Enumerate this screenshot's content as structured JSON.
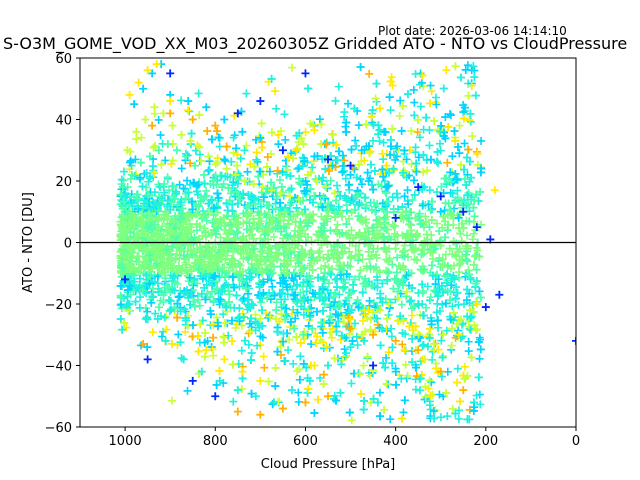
{
  "header": {
    "plot_date": "Plot date: 2026-03-06 14:14:10",
    "title": "S-O3M_GOME_VOD_XX_M03_20260305Z Gridded ATO - NTO vs CloudPressure"
  },
  "chart_data": {
    "type": "scatter",
    "marker": "plus",
    "xlabel": "Cloud Pressure [hPa]",
    "ylabel": "ATO - NTO [DU]",
    "xlim": [
      1100,
      0
    ],
    "ylim": [
      -60,
      60
    ],
    "x_reversed": true,
    "x_ticks": [
      1000,
      800,
      600,
      400,
      200,
      0
    ],
    "y_ticks": [
      -60,
      -40,
      -20,
      0,
      20,
      40,
      60
    ],
    "reference_line_y": 0,
    "grid": false,
    "colors": [
      "#7fff7f",
      "#4dffaa",
      "#1ff0e0",
      "#00d4ff",
      "#c8ff37",
      "#ffea00",
      "#ffb000",
      "#0028ff"
    ],
    "series": [
      {
        "x": [
          1010,
          1000,
          990,
          980,
          970,
          960,
          950,
          940,
          930,
          920,
          900,
          880,
          860,
          840,
          820,
          800,
          780,
          760,
          740,
          720,
          700,
          680,
          660,
          640,
          620,
          600,
          580,
          560,
          540,
          520,
          500,
          480,
          460,
          440,
          420,
          400,
          380,
          360,
          340,
          320,
          300,
          280,
          260,
          240
        ],
        "y": [
          2,
          4,
          6,
          5,
          3,
          4,
          2,
          1,
          3,
          2,
          1,
          0,
          -1,
          -2,
          -1,
          0,
          -2,
          -3,
          -2,
          -4,
          -3,
          -5,
          -4,
          -6,
          -5,
          -4,
          -6,
          -5,
          -4,
          -3,
          -5,
          -4,
          -3,
          -2,
          -3,
          -2,
          -1,
          -2,
          -1,
          0,
          -1,
          -2,
          -3,
          -2
        ]
      },
      {
        "x": [
          1005,
          985,
          965,
          945,
          925,
          905,
          885,
          865,
          845,
          825,
          805,
          785,
          765,
          745,
          725,
          705,
          685,
          665,
          645,
          625,
          605,
          585,
          565,
          545,
          525,
          505,
          485,
          465,
          445,
          425,
          405,
          385,
          365,
          345,
          325,
          305,
          285
        ],
        "y": [
          18,
          22,
          26,
          28,
          30,
          32,
          30,
          28,
          25,
          22,
          20,
          18,
          16,
          14,
          12,
          10,
          -18,
          -22,
          -25,
          -28,
          -30,
          -28,
          -26,
          -24,
          -20,
          -18,
          15,
          12,
          10,
          8,
          -15,
          -12,
          -10,
          6,
          5,
          -6,
          4
        ]
      },
      {
        "x": [
          990,
          950,
          910,
          870,
          830,
          790,
          750,
          710,
          670,
          630,
          590,
          550,
          510,
          470,
          430,
          390,
          350,
          310,
          270
        ],
        "y": [
          -20,
          -25,
          -32,
          -38,
          -42,
          -45,
          -48,
          -50,
          -52,
          -48,
          -45,
          -40,
          -36,
          -32,
          -28,
          -24,
          -20,
          -16,
          -12
        ]
      },
      {
        "x": [
          980,
          960,
          940,
          920,
          900,
          860,
          820,
          780,
          740,
          700,
          660,
          620,
          580,
          540,
          500,
          460,
          420,
          380,
          340,
          300,
          260
        ],
        "y": [
          45,
          50,
          55,
          58,
          48,
          46,
          44,
          40,
          36,
          34,
          32,
          30,
          28,
          25,
          22,
          20,
          18,
          15,
          12,
          10,
          8
        ]
      },
      {
        "x": [
          995,
          975,
          955,
          935,
          915,
          895,
          875,
          855,
          835,
          815,
          795,
          775,
          755,
          735,
          715,
          695,
          675,
          655,
          635,
          615,
          595,
          575,
          555,
          535,
          515,
          495,
          475,
          455,
          435,
          415,
          395,
          375,
          355,
          335,
          315,
          295,
          275,
          255,
          235
        ],
        "y": [
          30,
          36,
          40,
          44,
          42,
          38,
          35,
          33,
          31,
          28,
          26,
          24,
          22,
          20,
          19,
          18,
          17,
          16,
          15,
          14,
          22,
          20,
          18,
          16,
          -26,
          -28,
          -30,
          -25,
          -22,
          -20,
          -18,
          -16,
          -35,
          -38,
          -33,
          -30,
          -28,
          -25,
          -22
        ]
      },
      {
        "x": [
          990,
          970,
          950,
          930,
          900,
          860,
          820,
          780,
          740,
          700,
          660,
          620,
          580,
          540,
          500,
          460,
          420,
          380,
          340,
          300,
          260,
          220,
          180
        ],
        "y": [
          48,
          52,
          56,
          58,
          46,
          43,
          -35,
          -38,
          -42,
          -45,
          35,
          30,
          -40,
          -28,
          -25,
          -22,
          25,
          -35,
          -38,
          -42,
          -30,
          -20,
          17
        ]
      },
      {
        "x": [
          960,
          940,
          900,
          850,
          800,
          750,
          700,
          650,
          600,
          550,
          500,
          450,
          400,
          350,
          300,
          250
        ],
        "y": [
          -33,
          38,
          42,
          40,
          38,
          -55,
          -56,
          -54,
          -52,
          -50,
          -28,
          -30,
          -32,
          -35,
          -42,
          -48
        ]
      },
      {
        "x": [
          1000,
          950,
          900,
          850,
          800,
          750,
          700,
          650,
          600,
          550,
          500,
          450,
          400,
          350,
          300,
          250,
          220,
          200,
          190,
          170,
          0
        ],
        "y": [
          -12,
          -38,
          55,
          -45,
          -50,
          42,
          46,
          30,
          55,
          27,
          25,
          -40,
          8,
          18,
          15,
          10,
          5,
          -21,
          1,
          -17,
          -32
        ]
      }
    ]
  }
}
